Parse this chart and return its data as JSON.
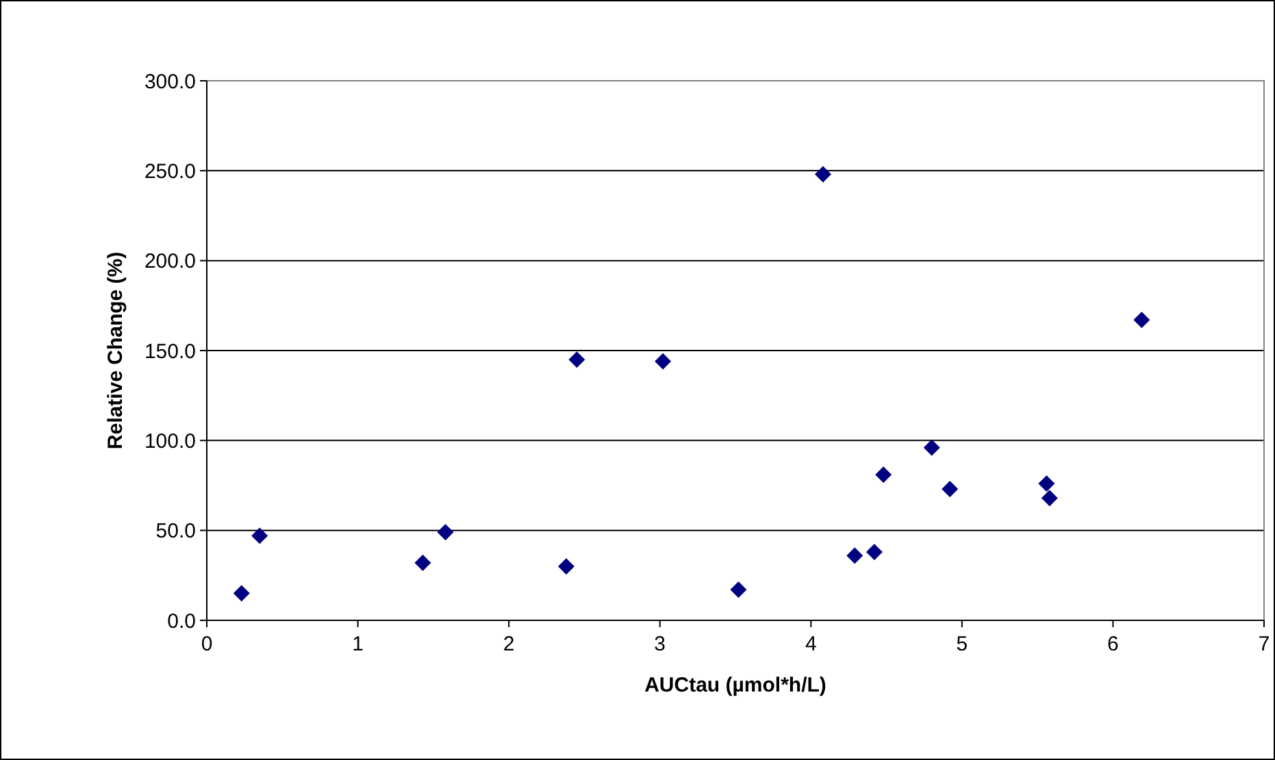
{
  "chart_data": {
    "type": "scatter",
    "xlabel": "AUCtau (µmol*h/L)",
    "ylabel": "Relative Change (%)",
    "x": [
      0.23,
      0.35,
      1.43,
      1.58,
      2.38,
      2.45,
      3.02,
      3.52,
      4.08,
      4.29,
      4.42,
      4.48,
      4.8,
      4.92,
      5.56,
      5.58,
      6.19
    ],
    "series": [
      {
        "color": "#000080",
        "values": [
          15,
          47,
          32,
          49,
          30,
          145,
          144,
          17,
          248,
          36,
          38,
          81,
          96,
          73,
          76,
          68,
          167
        ]
      }
    ],
    "xlim": [
      0,
      7
    ],
    "xticks": [
      0,
      1,
      2,
      3,
      4,
      5,
      6,
      7
    ],
    "ylim": [
      0,
      300
    ],
    "yticks": [
      {
        "value": 0,
        "label": "0.0"
      },
      {
        "value": 50,
        "label": "50.0"
      },
      {
        "value": 100,
        "label": "100.0"
      },
      {
        "value": 150,
        "label": "150.0"
      },
      {
        "value": 200,
        "label": "200.0"
      },
      {
        "value": 250,
        "label": "250.0"
      },
      {
        "value": 300,
        "label": "300.0"
      }
    ],
    "grid": "y",
    "marker": "diamond"
  }
}
